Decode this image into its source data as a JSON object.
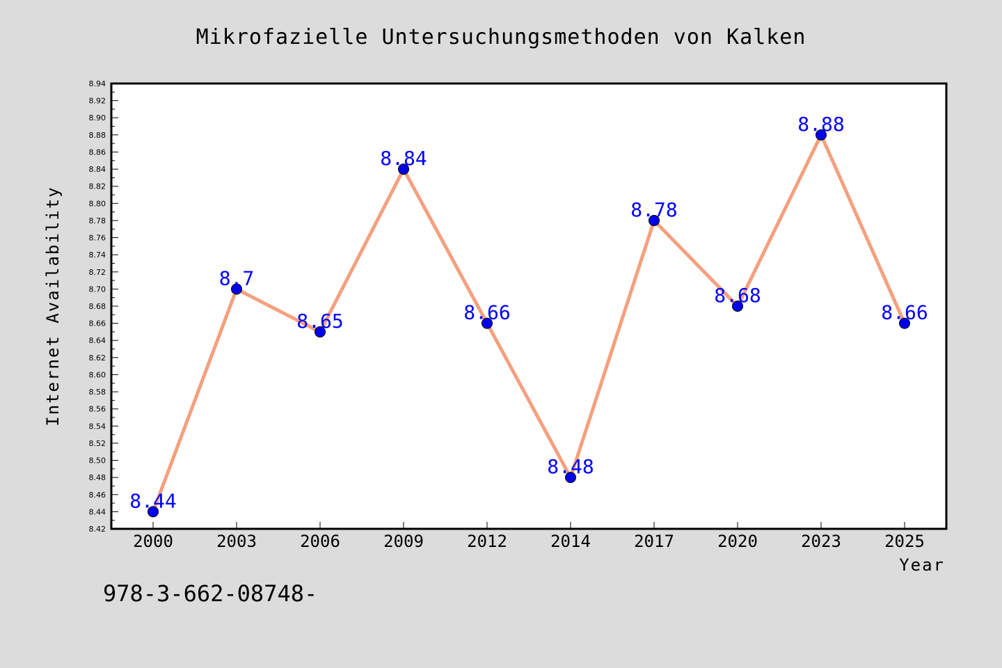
{
  "chart_data": {
    "type": "line",
    "title": "Mikrofazielle Untersuchungsmethoden von Kalken",
    "xlabel": "Year",
    "ylabel": "Internet Availability",
    "categories": [
      "2000",
      "2003",
      "2006",
      "2009",
      "2012",
      "2014",
      "2017",
      "2020",
      "2023",
      "2025"
    ],
    "series": [
      {
        "values": [
          8.44,
          8.7,
          8.65,
          8.84,
          8.66,
          8.48,
          8.78,
          8.68,
          8.88,
          8.66
        ],
        "data_labels": [
          "8.44",
          "8.7",
          "8.65",
          "8.84",
          "8.66",
          "8.48",
          "8.78",
          "8.68",
          "8.88",
          "8.66"
        ]
      }
    ],
    "ylim": [
      8.42,
      8.94
    ],
    "yticks": [
      "8.42",
      "8.44",
      "8.46",
      "8.48",
      "8.50",
      "8.52",
      "8.54",
      "8.56",
      "8.58",
      "8.60",
      "8.62",
      "8.64",
      "8.66",
      "8.68",
      "8.70",
      "8.72",
      "8.74",
      "8.76",
      "8.78",
      "8.80",
      "8.82",
      "8.84",
      "8.86",
      "8.88",
      "8.90",
      "8.92",
      "8.94"
    ],
    "grid": false,
    "legend": "none"
  },
  "footer_text": "978-3-662-08748-",
  "colors": {
    "background": "#dcdcdc",
    "plot_background": "#ffffff",
    "line": "#f4a07e",
    "marker": "#0000ee",
    "data_label": "#0000ff",
    "axis": "#000000"
  }
}
